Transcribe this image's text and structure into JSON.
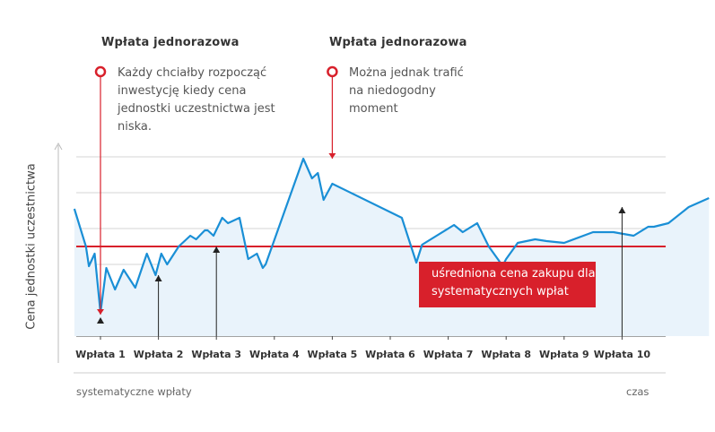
{
  "annotations": [
    {
      "heading": "Wpłata jednorazowa",
      "text": "Każdy chciałby rozpocząć inwestycję kiedy cena jednostki uczestnictwa jest niska."
    },
    {
      "heading": "Wpłata jednorazowa",
      "text": "Można jednak trafić na niedogodny moment"
    }
  ],
  "avg_label": "uśredniona cena zakupu dla systematycznych wpłat",
  "x_caption_left": "systematyczne wpłaty",
  "x_caption_right": "czas",
  "colors": {
    "line": "#1a8fd6",
    "fill": "#e9f3fb",
    "avg": "#d8202b",
    "grid": "#d6d6d6",
    "axis": "#444444"
  },
  "chart_data": {
    "type": "line",
    "ylabel": "Cena jednostki uczestnictwa",
    "xlabel": "systematyczne wpłaty",
    "x_unit_label": "czas",
    "categories": [
      "Wpłata 1",
      "Wpłata 2",
      "Wpłata 3",
      "Wpłata 4",
      "Wpłata 5",
      "Wpłata 6",
      "Wpłata 7",
      "Wpłata 8",
      "Wpłata 9",
      "Wpłata 10"
    ],
    "xlim": [
      0,
      10.5
    ],
    "ylim": [
      0,
      10.5
    ],
    "grid": true,
    "average_price": 5.0,
    "series": [
      {
        "x": [
          -0.45,
          -0.25,
          -0.2,
          -0.1,
          0.0,
          0.1,
          0.25,
          0.4,
          0.6,
          0.8,
          0.95,
          1.05,
          1.15,
          1.35,
          1.55,
          1.65,
          1.8,
          1.85,
          1.95,
          2.1,
          2.2,
          2.4,
          2.55,
          2.7,
          2.8,
          2.85,
          3.5,
          3.65,
          3.75,
          3.85,
          4.0,
          5.2,
          5.35,
          5.45,
          5.55,
          6.1,
          6.25,
          6.5,
          6.7,
          6.9,
          6.95,
          7.0,
          7.2,
          7.5,
          7.7,
          8.0,
          8.5,
          8.85,
          9.2,
          9.45,
          9.55,
          9.8,
          10.15,
          10.5
        ],
        "y": [
          7.1,
          5.0,
          3.9,
          4.6,
          1.3,
          3.8,
          2.6,
          3.7,
          2.7,
          4.6,
          3.4,
          4.6,
          4.0,
          5.0,
          5.6,
          5.4,
          5.9,
          5.9,
          5.6,
          6.6,
          6.3,
          6.6,
          4.3,
          4.6,
          3.8,
          4.0,
          9.9,
          8.8,
          9.1,
          7.6,
          8.5,
          6.6,
          5.1,
          4.1,
          5.1,
          6.2,
          5.8,
          6.3,
          5.0,
          4.1,
          4.0,
          4.3,
          5.2,
          5.4,
          5.3,
          5.2,
          5.8,
          5.8,
          5.6,
          6.1,
          6.1,
          6.3,
          7.2,
          7.7
        ]
      }
    ],
    "purchases_marked": [
      {
        "category": "Wpłata 1",
        "price": 1.0
      },
      {
        "category": "Wpłata 2",
        "price": 3.4
      },
      {
        "category": "Wpłata 3",
        "price": 5.0
      },
      {
        "category": "Wpłata 5",
        "price": 9.9
      },
      {
        "category": "Wpłata 10",
        "price": 7.2
      }
    ]
  }
}
